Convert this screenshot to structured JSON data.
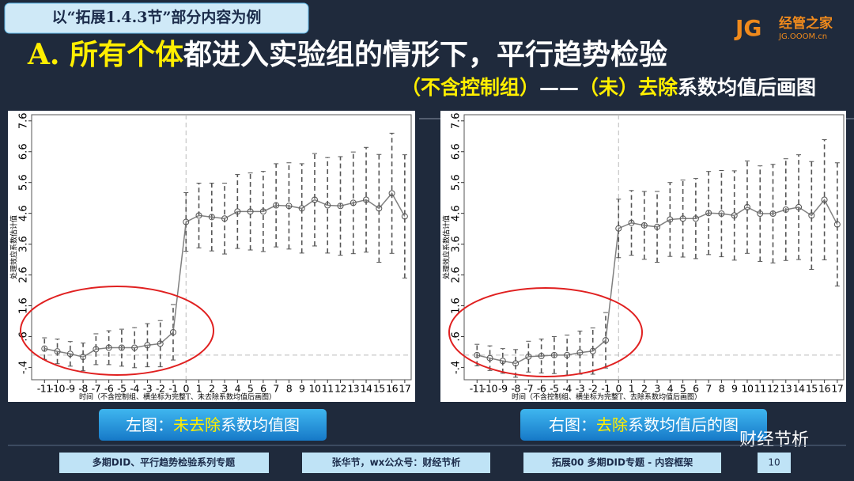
{
  "slide": {
    "tag": "以“拓展1.4.3节”部分内容为例",
    "logo_mark": "JG",
    "logo_name": "经管之家",
    "logo_url": "JG.OOOM.cn",
    "heading": [
      "A. 所有个体",
      "都进入实验组的情形下，平行趋势检验"
    ],
    "subheading": [
      "（不含控制组）",
      "——",
      "（未）去除",
      "系数均值后画图"
    ],
    "captions": [
      [
        "左图：",
        "未去除",
        "系数均值图"
      ],
      [
        "右图：",
        "去除",
        "系数均值后的图"
      ]
    ],
    "footer": [
      "多期DID、平行趋势检验系列专题",
      "张华节，wx公众号：财经节析",
      "拓展00 多期DID专题 - 内容框架",
      "10"
    ],
    "watermark": "财经节析"
  },
  "chart_data": [
    {
      "type": "line",
      "x": [
        -11,
        -10,
        -9,
        -8,
        -7,
        -6,
        -5,
        -4,
        -3,
        -2,
        -1,
        0,
        1,
        2,
        3,
        4,
        5,
        6,
        7,
        8,
        9,
        10,
        11,
        12,
        13,
        14,
        15,
        16,
        17
      ],
      "values": [
        0.21,
        0.12,
        0.04,
        -0.06,
        0.19,
        0.24,
        0.24,
        0.24,
        0.32,
        0.37,
        0.74,
        4.32,
        4.53,
        4.48,
        4.43,
        4.66,
        4.66,
        4.66,
        4.86,
        4.84,
        4.76,
        5.04,
        4.86,
        4.84,
        4.94,
        5.04,
        4.76,
        5.25,
        4.5
      ],
      "errors": [
        0.35,
        0.4,
        0.4,
        0.45,
        0.5,
        0.55,
        0.6,
        0.65,
        0.7,
        0.75,
        0.9,
        0.95,
        1.05,
        1.1,
        1.15,
        1.2,
        1.25,
        1.3,
        1.35,
        1.4,
        1.45,
        1.5,
        1.55,
        1.6,
        1.65,
        1.7,
        1.75,
        1.95,
        2.0
      ],
      "color": "#808080",
      "xlim": [
        -12,
        17.5
      ],
      "ylim": [
        -0.8,
        7.8
      ],
      "xticks": [
        -11,
        -10,
        -9,
        -8,
        -7,
        -6,
        -5,
        -4,
        -3,
        -2,
        -1,
        0,
        1,
        2,
        3,
        4,
        5,
        6,
        7,
        8,
        9,
        10,
        11,
        12,
        13,
        14,
        15,
        16,
        17
      ],
      "yticks": [
        {
          "value": -0.4,
          "label": "-.4"
        },
        {
          "value": 0.6,
          "label": ".6"
        },
        1.6,
        2.6,
        3.6,
        4.6,
        5.6,
        6.6,
        7.6
      ],
      "hline": 0,
      "vline": 0,
      "ylabel": "处理效应系数估计值",
      "xlabel": "时间（不含控制组、横坐标为完整T、未去除系数均值后画图）"
    },
    {
      "type": "line",
      "x": [
        -11,
        -10,
        -9,
        -8,
        -7,
        -6,
        -5,
        -4,
        -3,
        -2,
        -1,
        0,
        1,
        2,
        3,
        4,
        5,
        6,
        7,
        8,
        9,
        10,
        11,
        12,
        13,
        14,
        15,
        16,
        17
      ],
      "values": [
        0.0,
        -0.1,
        -0.19,
        -0.27,
        -0.05,
        -0.03,
        0.0,
        0.0,
        0.08,
        0.13,
        0.48,
        4.11,
        4.29,
        4.21,
        4.16,
        4.4,
        4.43,
        4.43,
        4.61,
        4.59,
        4.53,
        4.8,
        4.59,
        4.59,
        4.72,
        4.8,
        4.53,
        5.04,
        4.24
      ],
      "errors": [
        0.35,
        0.4,
        0.4,
        0.45,
        0.5,
        0.55,
        0.6,
        0.65,
        0.7,
        0.75,
        0.9,
        0.95,
        1.05,
        1.1,
        1.15,
        1.2,
        1.25,
        1.3,
        1.35,
        1.4,
        1.45,
        1.5,
        1.55,
        1.6,
        1.65,
        1.7,
        1.75,
        1.95,
        2.0
      ],
      "color": "#808080",
      "xlim": [
        -12,
        17.5
      ],
      "ylim": [
        -0.8,
        7.8
      ],
      "xticks": [
        -11,
        -10,
        -9,
        -8,
        -7,
        -6,
        -5,
        -4,
        -3,
        -2,
        -1,
        0,
        1,
        2,
        3,
        4,
        5,
        6,
        7,
        8,
        9,
        10,
        11,
        12,
        13,
        14,
        15,
        16,
        17
      ],
      "yticks": [
        {
          "value": -0.4,
          "label": "-.4"
        },
        {
          "value": 0.6,
          "label": ".6"
        },
        1.6,
        2.6,
        3.6,
        4.6,
        5.6,
        6.6,
        7.6
      ],
      "hline": 0,
      "vline": 0,
      "ylabel": "处理效应系数估计值",
      "xlabel": "时间（不含控制组、横坐标为完整T、去除系数均值后画图）"
    }
  ]
}
